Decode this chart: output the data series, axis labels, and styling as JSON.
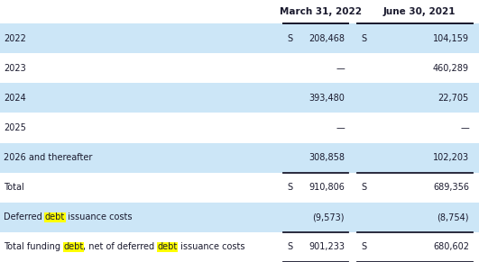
{
  "header_col2": "March 31, 2022",
  "header_col3": "June 30, 2021",
  "rows": [
    {
      "label": "2022",
      "dollar1": "S",
      "val1": "208,468",
      "dollar2": "S",
      "val2": "104,159",
      "highlight": true,
      "top_border": true,
      "bottom_border": false,
      "index": 0
    },
    {
      "label": "2023",
      "dollar1": "",
      "val1": "—",
      "dollar2": "",
      "val2": "460,289",
      "highlight": false,
      "top_border": false,
      "bottom_border": false,
      "index": 1
    },
    {
      "label": "2024",
      "dollar1": "",
      "val1": "393,480",
      "dollar2": "",
      "val2": "22,705",
      "highlight": true,
      "top_border": false,
      "bottom_border": false,
      "index": 2
    },
    {
      "label": "2025",
      "dollar1": "",
      "val1": "—",
      "dollar2": "",
      "val2": "—",
      "highlight": false,
      "top_border": false,
      "bottom_border": false,
      "index": 3
    },
    {
      "label": "2026 and thereafter",
      "dollar1": "",
      "val1": "308,858",
      "dollar2": "",
      "val2": "102,203",
      "highlight": true,
      "top_border": false,
      "bottom_border": true,
      "index": 4
    },
    {
      "label": "Total",
      "dollar1": "S",
      "val1": "910,806",
      "dollar2": "S",
      "val2": "689,356",
      "highlight": false,
      "top_border": false,
      "bottom_border": false,
      "index": 5
    },
    {
      "label": "Deferred [debt] issuance costs",
      "dollar1": "",
      "val1": "(9,573)",
      "dollar2": "",
      "val2": "(8,754)",
      "highlight": true,
      "top_border": false,
      "bottom_border": true,
      "index": 6
    },
    {
      "label": "Total funding [debt], net of deferred [debt] issuance costs",
      "dollar1": "S",
      "val1": "901,233",
      "dollar2": "S",
      "val2": "680,602",
      "highlight": false,
      "top_border": false,
      "bottom_border": true,
      "index": 7
    }
  ],
  "bg_highlight": "#cce6f7",
  "bg_white": "#ffffff",
  "text_color": "#1a1a2e",
  "highlight_color": "#ffff00",
  "font_size": 7.0,
  "header_font_size": 7.5,
  "fig_width": 5.31,
  "fig_height": 2.91,
  "dpi": 100
}
